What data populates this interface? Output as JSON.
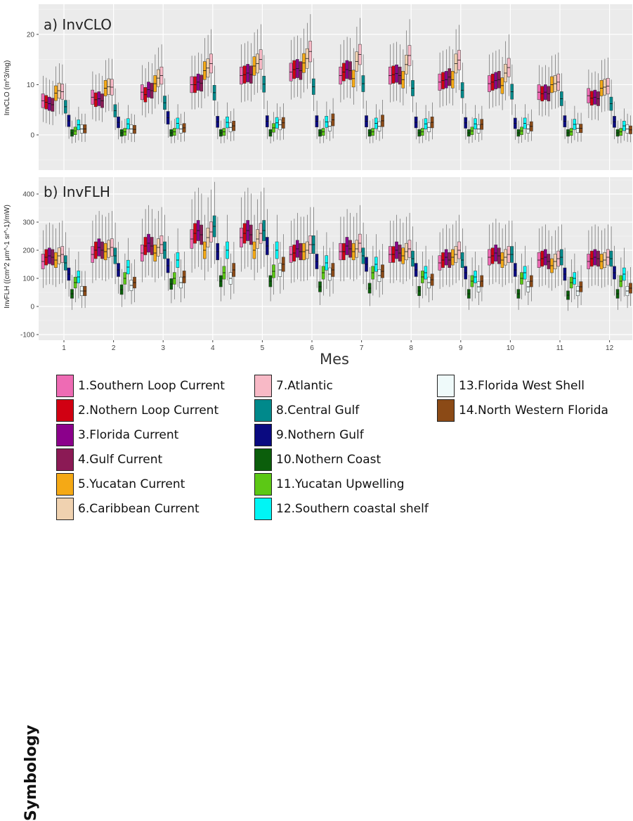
{
  "chart_data": [
    {
      "type": "boxplot",
      "panel_title": "a) InvCLO",
      "ylabel": "InvCLO (m^3/mg)",
      "ylim": [
        -7,
        26
      ],
      "yticks": [
        0,
        10,
        20
      ],
      "categories": [
        "1",
        "2",
        "3",
        "4",
        "5",
        "6",
        "7",
        "8",
        "9",
        "10",
        "11",
        "12"
      ],
      "grid": true,
      "medians_by_region": [
        [
          6.8,
          7.5,
          8.5,
          10,
          11.8,
          12.5,
          11.8,
          11.8,
          10.5,
          10.2,
          8.5,
          7.8
        ],
        [
          6.5,
          7,
          8,
          10,
          12,
          13,
          12.5,
          12,
          10.8,
          10.5,
          8.2,
          7.3
        ],
        [
          6.2,
          7.2,
          9,
          10.5,
          12.3,
          13.2,
          13,
          12.2,
          11,
          10.8,
          8.5,
          7.5
        ],
        [
          6,
          6.8,
          8.8,
          10.3,
          12,
          12.8,
          12.8,
          11.8,
          11.5,
          11,
          8.2,
          7.2
        ],
        [
          8.3,
          9.3,
          10.2,
          12.8,
          13.7,
          14.3,
          11.2,
          11,
          11,
          9.8,
          10,
          9.3
        ],
        [
          8.8,
          9.6,
          11.3,
          13.3,
          14.2,
          15.2,
          14.6,
          14,
          14.2,
          12.3,
          10.2,
          9.5
        ],
        [
          8.6,
          9.5,
          11.8,
          14.2,
          15,
          16.6,
          16,
          15.8,
          14.9,
          13.4,
          10.5,
          9.7
        ],
        [
          5.6,
          4.8,
          6.4,
          8.4,
          10.1,
          9.6,
          10.2,
          9.3,
          8.9,
          8.6,
          7.2,
          6.2
        ],
        [
          2.8,
          2.5,
          3.4,
          2.6,
          2.7,
          2.7,
          2.7,
          2.5,
          2.4,
          2.3,
          2.7,
          2.6
        ],
        [
          0.4,
          0.4,
          0.4,
          0.4,
          0.4,
          0.4,
          0.4,
          0.4,
          0.4,
          0.4,
          0.4,
          0.4
        ],
        [
          0.8,
          0.6,
          0.6,
          0.6,
          1.4,
          0.6,
          0.6,
          0.6,
          0.8,
          0.8,
          0.6,
          0.6
        ],
        [
          2,
          2.2,
          2.3,
          2.5,
          2.4,
          2.6,
          2.3,
          2.2,
          2.2,
          2.3,
          2.1,
          1.8
        ],
        [
          1.2,
          1.2,
          1.2,
          1.5,
          2,
          1.7,
          1.7,
          1.5,
          1.2,
          1.2,
          1.3,
          1.2
        ],
        [
          1.2,
          1.1,
          1.4,
          1.8,
          2.4,
          3,
          2.8,
          2.5,
          2.1,
          1.7,
          1.3,
          1.0
        ]
      ]
    },
    {
      "type": "boxplot",
      "panel_title": "b) InvFLH",
      "ylabel": "InvFLH ((cm^2 μm^-1 sr^-1)/mW)",
      "ylim": [
        -120,
        460
      ],
      "yticks": [
        -100,
        0,
        100,
        200,
        300,
        400
      ],
      "categories": [
        "1",
        "2",
        "3",
        "4",
        "5",
        "6",
        "7",
        "8",
        "9",
        "10",
        "11",
        "12"
      ],
      "xlabel": "Mes",
      "grid": true,
      "medians_by_region": [
        [
          160,
          185,
          190,
          240,
          245,
          185,
          195,
          185,
          155,
          175,
          165,
          160
        ],
        [
          175,
          200,
          215,
          260,
          260,
          190,
          195,
          185,
          165,
          180,
          170,
          170
        ],
        [
          180,
          210,
          225,
          270,
          270,
          205,
          215,
          200,
          175,
          190,
          175,
          175
        ],
        [
          175,
          200,
          215,
          255,
          255,
          195,
          205,
          190,
          165,
          180,
          160,
          170
        ],
        [
          165,
          195,
          190,
          200,
          200,
          195,
          195,
          180,
          175,
          165,
          145,
          160
        ],
        [
          180,
          205,
          210,
          245,
          240,
          200,
          205,
          195,
          185,
          175,
          160,
          165
        ],
        [
          185,
          210,
          220,
          265,
          260,
          220,
          225,
          205,
          200,
          185,
          170,
          175
        ],
        [
          155,
          180,
          200,
          285,
          270,
          220,
          180,
          170,
          165,
          185,
          175,
          170
        ],
        [
          115,
          130,
          145,
          195,
          215,
          160,
          150,
          130,
          120,
          130,
          115,
          120
        ],
        [
          45,
          60,
          80,
          90,
          90,
          70,
          65,
          55,
          45,
          45,
          40,
          45
        ],
        [
          85,
          100,
          100,
          120,
          125,
          120,
          120,
          105,
          90,
          100,
          85,
          90
        ],
        [
          105,
          140,
          165,
          200,
          200,
          155,
          150,
          120,
          105,
          120,
          100,
          115
        ],
        [
          55,
          75,
          85,
          100,
          130,
          115,
          110,
          85,
          70,
          70,
          55,
          55
        ],
        [
          55,
          85,
          105,
          130,
          150,
          130,
          125,
          95,
          90,
          90,
          70,
          65
        ]
      ]
    }
  ],
  "legend": {
    "title": "Symbology",
    "items": [
      {
        "label": "1.Southern Loop Current",
        "color": "#ee6bb4"
      },
      {
        "label": "2.Nothern Loop Current",
        "color": "#d10012"
      },
      {
        "label": "3.Florida Current",
        "color": "#8b008b"
      },
      {
        "label": "4.Gulf Current",
        "color": "#8b1a55"
      },
      {
        "label": "5.Yucatan Current",
        "color": "#f5a915"
      },
      {
        "label": "6.Caribbean Current",
        "color": "#f0d2b0"
      },
      {
        "label": "7.Atlantic",
        "color": "#f8b9c6"
      },
      {
        "label": "8.Central Gulf",
        "color": "#00898b"
      },
      {
        "label": "9.Nothern Gulf",
        "color": "#0a0a80"
      },
      {
        "label": "10.Nothern Coast",
        "color": "#0b5e0b"
      },
      {
        "label": "11.Yucatan Upwelling",
        "color": "#5cc815"
      },
      {
        "label": "12.Southern coastal shelf",
        "color": "#00f5f5"
      },
      {
        "label": "13.Florida West Shell",
        "color": "#effafa"
      },
      {
        "label": "14.North Western Florida",
        "color": "#8b4a16"
      }
    ]
  }
}
